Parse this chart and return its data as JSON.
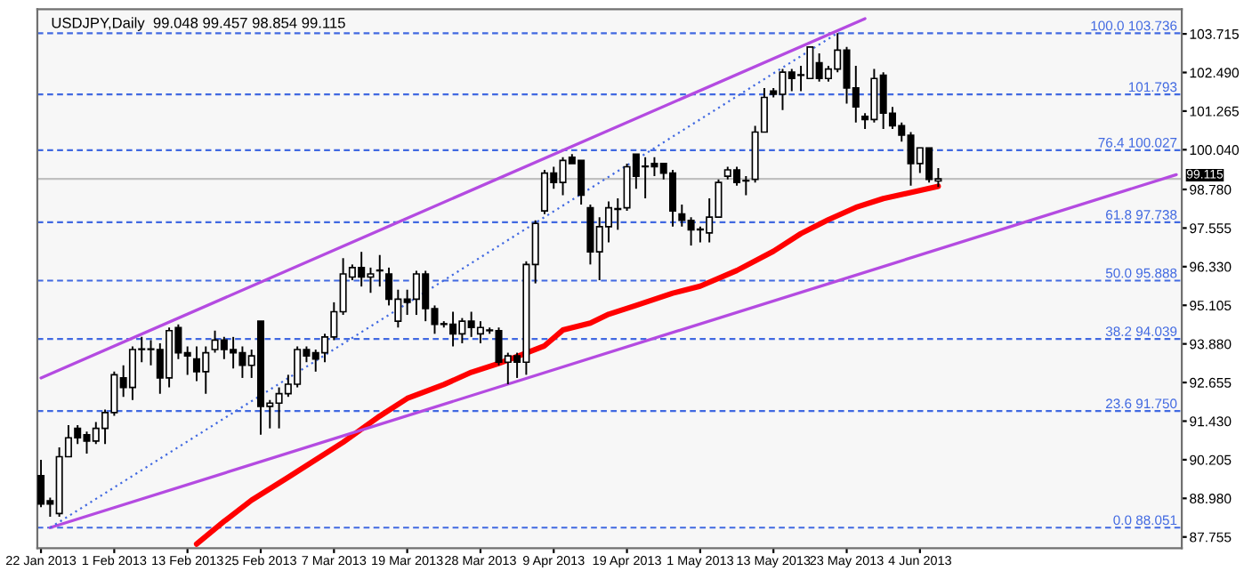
{
  "chart_data": {
    "type": "candlestick",
    "title": "USDJPY,Daily  99.048 99.457 98.854 99.115",
    "categories": [
      "22 Jan 2013",
      null,
      null,
      null,
      null,
      null,
      null,
      null,
      "1 Feb 2013",
      null,
      null,
      null,
      null,
      null,
      null,
      null,
      "13 Feb 2013",
      null,
      null,
      null,
      null,
      null,
      null,
      null,
      "25 Feb 2013",
      null,
      null,
      null,
      null,
      null,
      null,
      null,
      "7 Mar 2013",
      null,
      null,
      null,
      null,
      null,
      null,
      null,
      "19 Mar 2013",
      null,
      null,
      null,
      null,
      null,
      null,
      null,
      "28 Mar 2013",
      null,
      null,
      null,
      null,
      null,
      null,
      null,
      "9 Apr 2013",
      null,
      null,
      null,
      null,
      null,
      null,
      null,
      "19 Apr 2013",
      null,
      null,
      null,
      null,
      null,
      null,
      null,
      "1 May 2013",
      null,
      null,
      null,
      null,
      null,
      null,
      null,
      "13 May 2013",
      null,
      null,
      null,
      null,
      null,
      null,
      null,
      "23 May 2013",
      null,
      null,
      null,
      null,
      null,
      null,
      null,
      "4 Jun 2013",
      null,
      null,
      null,
      null,
      null,
      null,
      null,
      null,
      null,
      null,
      null,
      null,
      null,
      null,
      null,
      null,
      null,
      null,
      null,
      null,
      null,
      null,
      null,
      null,
      null,
      null,
      null,
      null
    ],
    "ohlc": [
      [
        89.7,
        90.2,
        88.7,
        88.8
      ],
      [
        88.9,
        89.0,
        88.4,
        88.8
      ],
      [
        88.5,
        90.6,
        88.4,
        90.3
      ],
      [
        90.3,
        91.3,
        90.3,
        90.9
      ],
      [
        91.2,
        91.3,
        90.7,
        90.9
      ],
      [
        91.0,
        91.1,
        90.4,
        90.8
      ],
      [
        90.8,
        91.4,
        90.7,
        91.2
      ],
      [
        91.2,
        91.8,
        90.7,
        91.7
      ],
      [
        91.7,
        93.0,
        91.6,
        92.9
      ],
      [
        92.8,
        93.2,
        92.2,
        92.5
      ],
      [
        92.5,
        93.8,
        92.1,
        93.7
      ],
      [
        93.7,
        94.1,
        93.3,
        93.7
      ],
      [
        93.7,
        94.0,
        93.2,
        93.7
      ],
      [
        93.7,
        93.9,
        92.3,
        92.8
      ],
      [
        92.8,
        94.4,
        92.5,
        94.3
      ],
      [
        94.4,
        94.5,
        93.4,
        93.6
      ],
      [
        93.6,
        93.8,
        92.9,
        93.5
      ],
      [
        93.4,
        93.8,
        92.7,
        93.0
      ],
      [
        93.0,
        93.8,
        92.3,
        93.6
      ],
      [
        93.7,
        94.3,
        93.6,
        94.0
      ],
      [
        94.0,
        94.1,
        93.4,
        93.7
      ],
      [
        93.7,
        94.1,
        93.1,
        93.6
      ],
      [
        93.6,
        93.8,
        92.8,
        93.2
      ],
      [
        93.2,
        93.7,
        92.8,
        93.5
      ],
      [
        94.6,
        94.6,
        91.0,
        91.9
      ],
      [
        91.9,
        92.1,
        91.2,
        92.0
      ],
      [
        92.0,
        92.5,
        91.2,
        92.3
      ],
      [
        92.3,
        92.9,
        92.2,
        92.6
      ],
      [
        92.6,
        93.8,
        92.5,
        93.7
      ],
      [
        93.7,
        93.8,
        93.3,
        93.5
      ],
      [
        93.6,
        93.7,
        93.0,
        93.4
      ],
      [
        93.6,
        94.2,
        93.3,
        94.1
      ],
      [
        94.1,
        95.2,
        94.0,
        94.9
      ],
      [
        94.9,
        96.6,
        94.8,
        96.1
      ],
      [
        96.0,
        96.4,
        95.9,
        96.3
      ],
      [
        96.3,
        96.8,
        95.7,
        96.0
      ],
      [
        96.0,
        96.3,
        95.5,
        96.1
      ],
      [
        96.2,
        96.7,
        95.7,
        96.2
      ],
      [
        96.1,
        96.3,
        95.1,
        95.3
      ],
      [
        94.6,
        95.6,
        94.4,
        95.3
      ],
      [
        95.3,
        95.6,
        94.8,
        95.2
      ],
      [
        95.3,
        96.2,
        94.8,
        96.1
      ],
      [
        96.1,
        96.2,
        94.6,
        95.0
      ],
      [
        95.0,
        95.1,
        94.2,
        94.5
      ],
      [
        94.5,
        94.6,
        94.4,
        94.5
      ],
      [
        94.5,
        94.9,
        93.8,
        94.2
      ],
      [
        94.2,
        94.7,
        93.9,
        94.6
      ],
      [
        94.6,
        94.9,
        94.1,
        94.4
      ],
      [
        94.2,
        94.6,
        93.9,
        94.4
      ],
      [
        94.3,
        94.4,
        94.2,
        94.3
      ],
      [
        94.3,
        94.4,
        93.2,
        93.3
      ],
      [
        93.3,
        93.6,
        92.6,
        93.5
      ],
      [
        93.5,
        93.6,
        92.8,
        93.3
      ],
      [
        93.3,
        96.5,
        92.9,
        96.4
      ],
      [
        96.4,
        97.8,
        95.8,
        97.7
      ],
      [
        98.1,
        99.4,
        98.0,
        99.3
      ],
      [
        99.3,
        99.5,
        98.8,
        99.0
      ],
      [
        99.0,
        99.8,
        98.6,
        99.7
      ],
      [
        99.8,
        99.9,
        99.6,
        99.6
      ],
      [
        99.7,
        99.7,
        98.3,
        98.6
      ],
      [
        98.2,
        98.3,
        96.4,
        96.8
      ],
      [
        96.8,
        97.9,
        95.9,
        97.6
      ],
      [
        97.6,
        98.4,
        97.1,
        98.2
      ],
      [
        98.15,
        98.5,
        97.5,
        98.15
      ],
      [
        98.2,
        99.6,
        98.1,
        99.5
      ],
      [
        99.9,
        99.9,
        98.8,
        99.2
      ],
      [
        99.5,
        99.8,
        98.5,
        99.5
      ],
      [
        99.6,
        99.8,
        99.2,
        99.5
      ],
      [
        99.6,
        99.6,
        99.1,
        99.3
      ],
      [
        99.3,
        99.4,
        97.6,
        98.1
      ],
      [
        98.0,
        98.3,
        97.6,
        97.8
      ],
      [
        97.8,
        97.9,
        97.0,
        97.5
      ],
      [
        97.5,
        97.6,
        97.1,
        97.5
      ],
      [
        97.4,
        98.5,
        97.1,
        97.9
      ],
      [
        97.9,
        99.1,
        97.9,
        99.0
      ],
      [
        99.2,
        99.5,
        99.1,
        99.4
      ],
      [
        99.4,
        99.5,
        98.9,
        99.0
      ],
      [
        99.05,
        99.2,
        98.6,
        99.05
      ],
      [
        99.1,
        100.8,
        99.0,
        100.6
      ],
      [
        100.6,
        102.0,
        100.6,
        101.7
      ],
      [
        101.9,
        102.0,
        101.7,
        101.8
      ],
      [
        101.8,
        102.6,
        101.3,
        102.5
      ],
      [
        102.5,
        102.6,
        101.9,
        102.3
      ],
      [
        102.4,
        102.7,
        101.9,
        102.4
      ],
      [
        102.3,
        103.3,
        102.3,
        103.3
      ],
      [
        102.8,
        103.1,
        102.2,
        102.3
      ],
      [
        102.3,
        102.7,
        102.2,
        102.6
      ],
      [
        102.6,
        103.74,
        102.5,
        103.2
      ],
      [
        103.2,
        103.3,
        101.5,
        102.0
      ],
      [
        102.0,
        102.7,
        100.9,
        101.4
      ],
      [
        101.1,
        101.2,
        100.7,
        101.0
      ],
      [
        101.0,
        102.6,
        100.9,
        102.3
      ],
      [
        102.4,
        102.5,
        100.7,
        101.2
      ],
      [
        101.2,
        101.4,
        100.7,
        100.8
      ],
      [
        100.8,
        100.9,
        100.3,
        100.5
      ],
      [
        100.5,
        100.6,
        98.9,
        99.6
      ],
      [
        99.6,
        100.1,
        99.3,
        100.1
      ],
      [
        100.1,
        100.1,
        99.0,
        99.1
      ],
      [
        99.048,
        99.457,
        98.854,
        99.115
      ],
      null,
      null,
      null,
      null,
      null,
      null,
      null,
      null,
      null,
      null,
      null,
      null,
      null,
      null,
      null,
      null,
      null,
      null,
      null,
      null,
      null,
      null,
      null,
      null,
      null,
      null
    ],
    "series": [
      {
        "type": "line",
        "color": "#ff0000",
        "line_style": "solid",
        "values": [
          null,
          null,
          null,
          null,
          null,
          null,
          null,
          null,
          null,
          null,
          null,
          null,
          null,
          null,
          null,
          null,
          null,
          87.53,
          null,
          null,
          88.25,
          null,
          null,
          88.92,
          null,
          null,
          null,
          89.65,
          null,
          null,
          null,
          null,
          null,
          90.76,
          null,
          null,
          null,
          91.59,
          null,
          null,
          92.15,
          null,
          null,
          null,
          92.59,
          null,
          null,
          92.98,
          null,
          null,
          93.26,
          null,
          93.48,
          null,
          null,
          93.82,
          null,
          94.32,
          null,
          null,
          94.54,
          null,
          94.82,
          null,
          null,
          95.1,
          null,
          null,
          null,
          95.49,
          null,
          null,
          95.71,
          null,
          null,
          null,
          96.21,
          null,
          null,
          null,
          96.82,
          null,
          null,
          97.38,
          null,
          null,
          97.82,
          null,
          null,
          98.21,
          null,
          null,
          98.49,
          null,
          null,
          null,
          null,
          null,
          98.88,
          null,
          null,
          null,
          null,
          null,
          null,
          null,
          null,
          null,
          null,
          null,
          null,
          null,
          null,
          null,
          null,
          null,
          null,
          null,
          null,
          null,
          null,
          null,
          null,
          null,
          null
        ]
      },
      {
        "type": "line",
        "color": "#b44be1",
        "line_style": "solid",
        "values": [
          92.8,
          null,
          null,
          null,
          null,
          null,
          null,
          null,
          null,
          null,
          null,
          null,
          null,
          null,
          null,
          null,
          null,
          null,
          null,
          null,
          null,
          null,
          null,
          null,
          null,
          null,
          null,
          null,
          null,
          null,
          null,
          null,
          null,
          null,
          null,
          null,
          null,
          null,
          null,
          null,
          null,
          null,
          null,
          null,
          null,
          null,
          null,
          null,
          null,
          null,
          null,
          null,
          null,
          null,
          null,
          null,
          null,
          null,
          null,
          null,
          null,
          null,
          null,
          null,
          null,
          null,
          null,
          null,
          null,
          null,
          null,
          null,
          null,
          null,
          null,
          null,
          null,
          null,
          null,
          null,
          null,
          null,
          null,
          null,
          null,
          null,
          null,
          null,
          null,
          null,
          104.2,
          null,
          null,
          null,
          null,
          null,
          null,
          null,
          null,
          null,
          null,
          null,
          null,
          null,
          null,
          null,
          null,
          null,
          null,
          null,
          null,
          null,
          null,
          null,
          null,
          null,
          null,
          null,
          null,
          null,
          null,
          null,
          null,
          null,
          null
        ]
      },
      {
        "type": "line",
        "color": "#b44be1",
        "line_style": "solid",
        "values": [
          null,
          88.05,
          null,
          null,
          null,
          null,
          null,
          null,
          null,
          null,
          null,
          null,
          null,
          null,
          null,
          null,
          null,
          null,
          null,
          null,
          null,
          null,
          null,
          null,
          null,
          null,
          null,
          null,
          null,
          null,
          null,
          null,
          null,
          null,
          null,
          null,
          null,
          null,
          null,
          null,
          null,
          null,
          null,
          null,
          null,
          null,
          null,
          null,
          null,
          null,
          null,
          null,
          null,
          null,
          null,
          null,
          null,
          null,
          null,
          null,
          null,
          null,
          null,
          null,
          null,
          null,
          null,
          null,
          null,
          null,
          null,
          null,
          null,
          null,
          null,
          null,
          null,
          null,
          null,
          null,
          null,
          null,
          null,
          null,
          null,
          null,
          null,
          null,
          null,
          null,
          null,
          null,
          null,
          null,
          null,
          null,
          null,
          null,
          null,
          null,
          null,
          null,
          null,
          null,
          null,
          null,
          null,
          null,
          null,
          null,
          null,
          null,
          null,
          null,
          null,
          null,
          null,
          null,
          null,
          null,
          null,
          null,
          null,
          null,
          99.25
        ]
      },
      {
        "type": "line",
        "color": "#4169e1",
        "line_style": "dotted",
        "values": [
          null,
          88.05,
          null,
          null,
          null,
          null,
          null,
          null,
          null,
          null,
          null,
          null,
          null,
          null,
          null,
          null,
          null,
          null,
          null,
          null,
          null,
          null,
          null,
          null,
          null,
          null,
          null,
          null,
          null,
          null,
          null,
          null,
          null,
          null,
          null,
          null,
          null,
          null,
          null,
          null,
          null,
          null,
          null,
          null,
          null,
          null,
          null,
          null,
          null,
          null,
          null,
          null,
          null,
          null,
          null,
          null,
          null,
          null,
          null,
          null,
          null,
          null,
          null,
          null,
          null,
          null,
          null,
          null,
          null,
          null,
          null,
          null,
          null,
          null,
          null,
          null,
          null,
          null,
          null,
          null,
          null,
          null,
          null,
          null,
          null,
          null,
          null,
          103.74,
          null,
          null,
          null,
          null,
          null,
          null,
          null,
          null,
          null,
          null,
          null,
          null,
          null,
          null,
          null,
          null,
          null,
          null,
          null,
          null,
          null,
          null,
          null,
          null,
          null,
          null,
          null,
          null,
          null,
          null,
          null,
          null,
          null,
          null,
          null,
          null,
          null
        ]
      }
    ],
    "ylim": [
      87.4,
      104.5
    ],
    "yticks": [
      103.715,
      {
        "value": 102.49,
        "label": "102.490"
      },
      101.265,
      {
        "value": 100.04,
        "label": "100.040"
      },
      {
        "value": 98.78,
        "label": "98.780"
      },
      97.555,
      {
        "value": 96.33,
        "label": "96.330"
      },
      95.105,
      {
        "value": 93.88,
        "label": "93.880"
      },
      92.655,
      {
        "value": 91.43,
        "label": "91.430"
      },
      90.205,
      {
        "value": 88.98,
        "label": "88.980"
      },
      87.755
    ],
    "ref_lines": [
      {
        "axis": "y",
        "value": 103.736,
        "label": "100.0 103.736",
        "color": "#4169e1",
        "line_style": "dashed"
      },
      {
        "axis": "y",
        "value": 101.793,
        "label": "101.793",
        "color": "#4169e1",
        "line_style": "dashed"
      },
      {
        "axis": "y",
        "value": 100.027,
        "label": "76.4 100.027",
        "color": "#4169e1",
        "line_style": "dashed"
      },
      {
        "axis": "y",
        "value": 99.115,
        "label": "99.115",
        "color": "#c0c0c0",
        "line_style": "solid"
      },
      {
        "axis": "y",
        "value": 97.738,
        "label": "61.8 97.738",
        "color": "#4169e1",
        "line_style": "dashed"
      },
      {
        "axis": "y",
        "value": 95.888,
        "label": "50.0 95.888",
        "color": "#4169e1",
        "line_style": "dashed"
      },
      {
        "axis": "y",
        "value": 94.039,
        "label": "38.2 94.039",
        "color": "#4169e1",
        "line_style": "dashed"
      },
      {
        "axis": "y",
        "value": 91.75,
        "label": "23.6 91.750",
        "color": "#4169e1",
        "line_style": "dashed"
      },
      {
        "axis": "y",
        "value": 88.051,
        "label": "0.0 88.051",
        "color": "#4169e1",
        "line_style": "dashed"
      }
    ],
    "grid": false,
    "legend": false
  }
}
